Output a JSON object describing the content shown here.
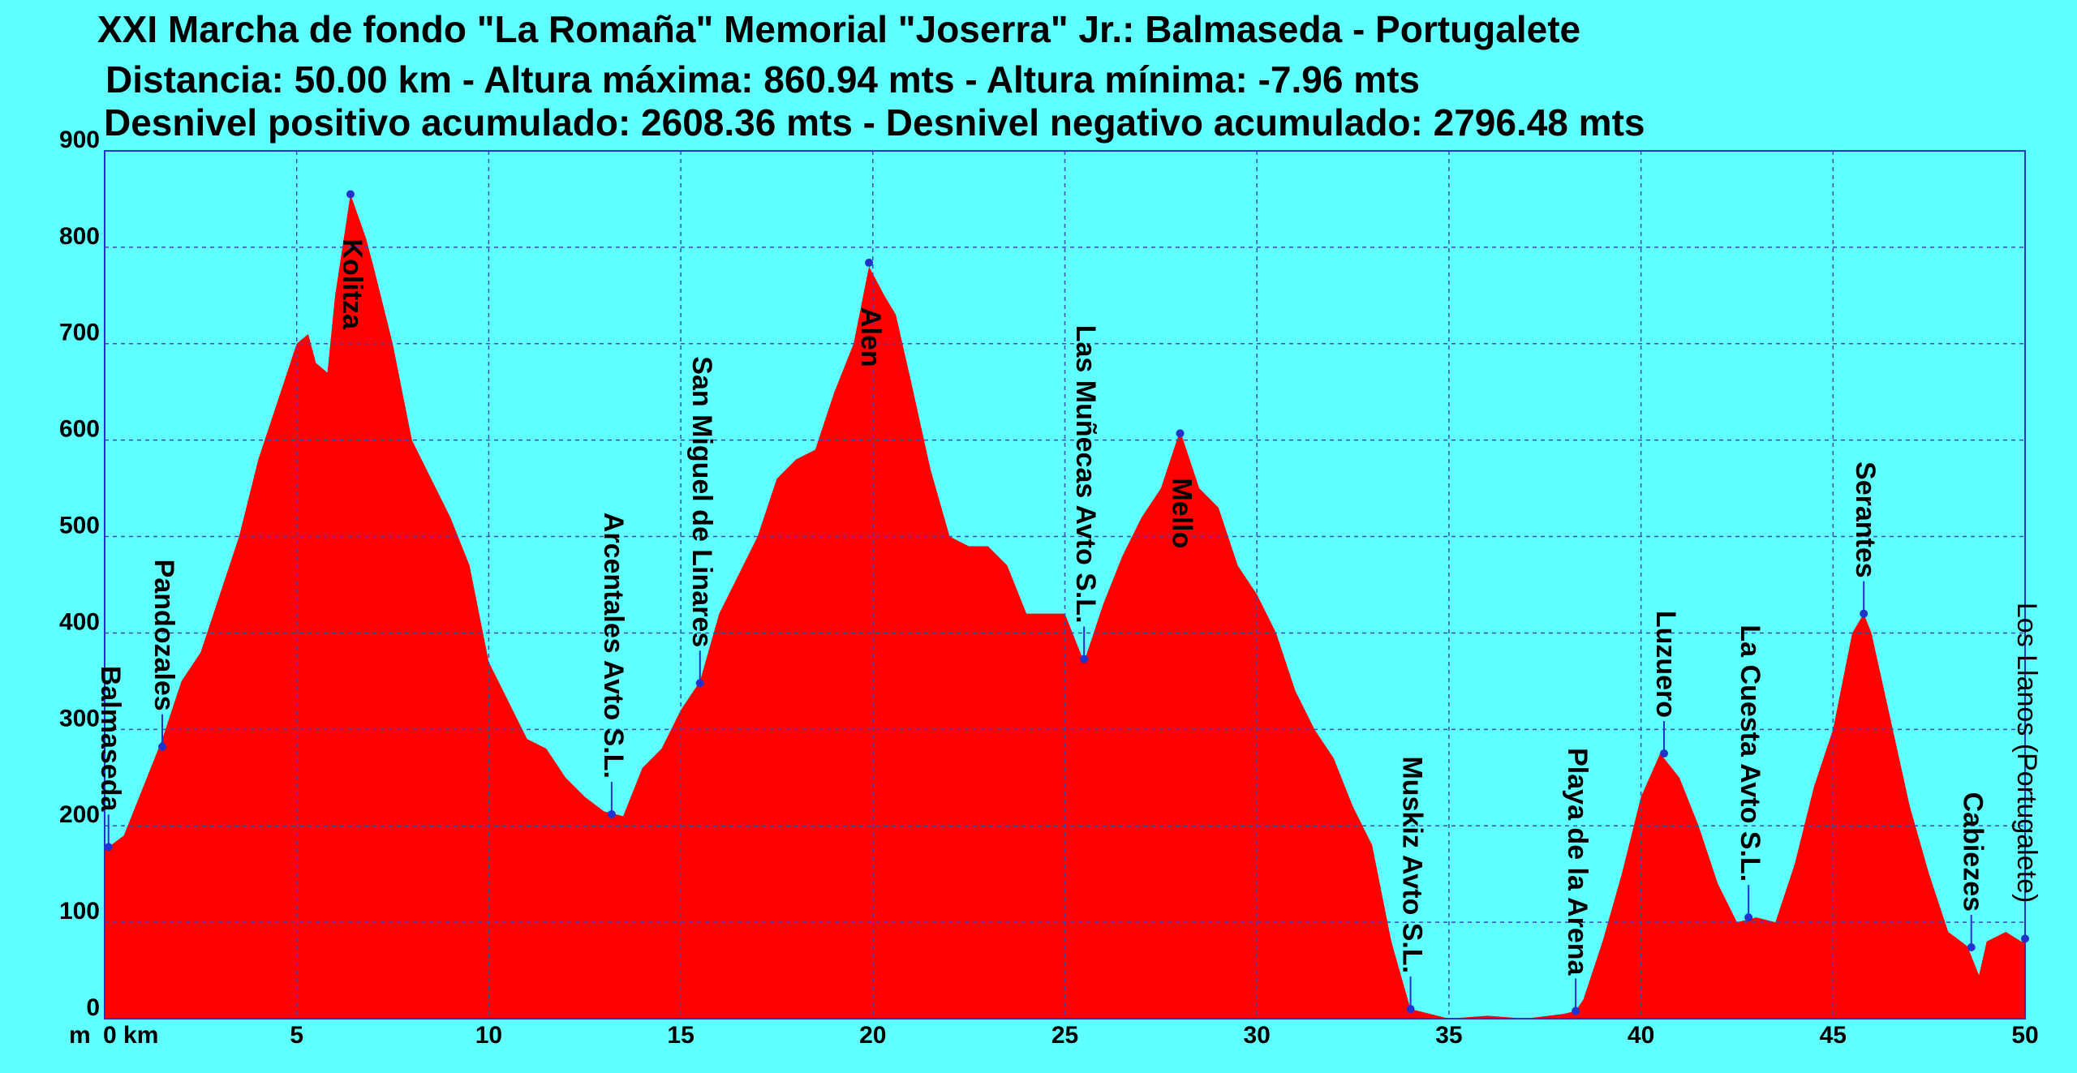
{
  "chart_data": {
    "type": "area",
    "title": "XXI Marcha de fondo \"La Romaña\" Memorial \"Joserra\" Jr.: Balmaseda - Portugalete",
    "subtitle": "Distancia: 50.00 km - Altura máxima: 860.94 mts - Altura mínima: -7.96 mts",
    "subtitle2": "Desnivel positivo acumulado: 2608.36 mts - Desnivel negativo acumulado: 2796.48 mts",
    "y_label": "m",
    "x": [
      0,
      0.5,
      1,
      1.5,
      2,
      2.5,
      3,
      3.5,
      4,
      4.5,
      5,
      5.3,
      5.5,
      5.8,
      6,
      6.4,
      6.8,
      7,
      7.5,
      8,
      8.5,
      9,
      9.5,
      10,
      10.5,
      11,
      11.5,
      12,
      12.5,
      13,
      13.5,
      14,
      14.5,
      15,
      15.5,
      16,
      16.5,
      17,
      17.5,
      18,
      18.5,
      19,
      19.5,
      19.9,
      20.3,
      20.6,
      21,
      21.5,
      22,
      22.5,
      23,
      23.5,
      24,
      24.5,
      25,
      25.5,
      26,
      26.5,
      27,
      27.5,
      28,
      28.5,
      29,
      29.5,
      30,
      30.5,
      31,
      31.5,
      32,
      32.5,
      33,
      33.5,
      34,
      34.5,
      35,
      36,
      37,
      38,
      38.3,
      38.5,
      39,
      39.5,
      40,
      40.5,
      41,
      41.5,
      42,
      42.5,
      43,
      43.5,
      44,
      44.5,
      45,
      45.5,
      45.8,
      46,
      46.5,
      47,
      47.5,
      48,
      48.5,
      48.8,
      49,
      49.5,
      49.9,
      50
    ],
    "values": [
      175,
      190,
      240,
      290,
      350,
      380,
      440,
      500,
      580,
      640,
      700,
      710,
      680,
      670,
      750,
      855,
      810,
      780,
      700,
      600,
      560,
      520,
      470,
      370,
      330,
      290,
      280,
      250,
      230,
      215,
      210,
      260,
      280,
      320,
      350,
      420,
      460,
      500,
      560,
      580,
      590,
      650,
      700,
      780,
      750,
      730,
      660,
      570,
      500,
      490,
      490,
      470,
      420,
      420,
      420,
      370,
      430,
      480,
      520,
      550,
      610,
      550,
      530,
      470,
      440,
      400,
      340,
      300,
      270,
      220,
      180,
      80,
      10,
      5,
      0,
      3,
      0,
      5,
      8,
      20,
      80,
      150,
      230,
      275,
      250,
      200,
      140,
      100,
      105,
      100,
      160,
      240,
      300,
      400,
      420,
      400,
      310,
      220,
      150,
      90,
      75,
      45,
      80,
      90,
      80,
      80
    ],
    "color": "#ff0000",
    "waypoints": [
      {
        "label": "Balmaseda",
        "x": 0.1,
        "y": 178
      },
      {
        "label": "Pandozales",
        "x": 1.5,
        "y": 282
      },
      {
        "label": "Kolitza",
        "x": 6.4,
        "y": 855
      },
      {
        "label": "Arcentales Avto S.L.",
        "x": 13.2,
        "y": 212
      },
      {
        "label": "San Miguel de Linares",
        "x": 15.5,
        "y": 348
      },
      {
        "label": "Alen",
        "x": 19.9,
        "y": 784
      },
      {
        "label": "Las Muñecas Avto S.L.",
        "x": 25.5,
        "y": 373
      },
      {
        "label": "Mello",
        "x": 28,
        "y": 607
      },
      {
        "label": "Muskiz Avto S.L.",
        "x": 34,
        "y": 10
      },
      {
        "label": "Playa de la Arena",
        "x": 38.3,
        "y": 8
      },
      {
        "label": "Luzuero",
        "x": 40.6,
        "y": 275
      },
      {
        "label": "La Cuesta Avto S.L.",
        "x": 42.8,
        "y": 105
      },
      {
        "label": "Serantes",
        "x": 45.8,
        "y": 420
      },
      {
        "label": "Cabiezes",
        "x": 48.6,
        "y": 74
      },
      {
        "label": "Los Llanos (Portugalete)",
        "x": 50,
        "y": 83
      }
    ],
    "xlim": [
      0,
      50
    ],
    "ylim": [
      0,
      900
    ],
    "xticks": [
      {
        "value": 0,
        "label": "0 km"
      },
      5,
      10,
      15,
      20,
      25,
      30,
      35,
      40,
      45,
      50
    ],
    "yticks": [
      0,
      100,
      200,
      300,
      400,
      500,
      600,
      700,
      800,
      900
    ],
    "grid": true
  }
}
